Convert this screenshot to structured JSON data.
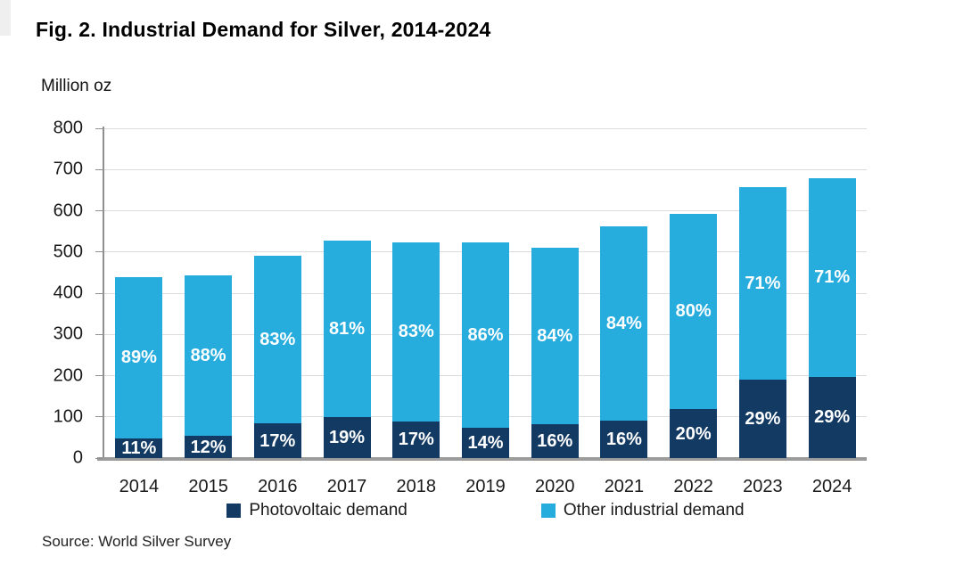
{
  "figure": {
    "title": "Fig. 2. Industrial Demand for Silver, 2014-2024",
    "unit_label": "Million oz",
    "source": "Source: World Silver Survey"
  },
  "legend": {
    "items": [
      {
        "name": "photovoltaic",
        "label": "Photovoltaic demand",
        "color": "#123a63"
      },
      {
        "name": "other-industrial",
        "label": "Other industrial demand",
        "color": "#27acde"
      }
    ]
  },
  "chart_data": {
    "type": "bar",
    "stacked": true,
    "title": "Fig. 2. Industrial Demand for Silver, 2014-2024",
    "ylabel": "Million oz",
    "xlabel": "",
    "categories": [
      "2014",
      "2015",
      "2016",
      "2017",
      "2018",
      "2019",
      "2020",
      "2021",
      "2022",
      "2023",
      "2024"
    ],
    "totals_million_oz": [
      440,
      443,
      490,
      527,
      524,
      523,
      511,
      562,
      593,
      657,
      680
    ],
    "series": [
      {
        "name": "Photovoltaic demand",
        "color": "#123a63",
        "pct_of_total": [
          11,
          12,
          17,
          19,
          17,
          14,
          16,
          16,
          20,
          29,
          29
        ],
        "labels": [
          "11%",
          "12%",
          "17%",
          "19%",
          "17%",
          "14%",
          "16%",
          "16%",
          "20%",
          "29%",
          "29%"
        ],
        "values_million_oz": [
          48,
          53,
          83,
          100,
          89,
          73,
          82,
          90,
          119,
          191,
          197
        ]
      },
      {
        "name": "Other industrial demand",
        "color": "#27acde",
        "pct_of_total": [
          89,
          88,
          83,
          81,
          83,
          86,
          84,
          84,
          80,
          71,
          71
        ],
        "labels": [
          "89%",
          "88%",
          "83%",
          "81%",
          "83%",
          "86%",
          "84%",
          "84%",
          "80%",
          "71%",
          "71%"
        ],
        "values_million_oz": [
          392,
          390,
          407,
          427,
          435,
          450,
          429,
          472,
          474,
          466,
          483
        ]
      }
    ],
    "ylim": [
      0,
      800
    ],
    "yticks": [
      0,
      100,
      200,
      300,
      400,
      500,
      600,
      700,
      800
    ],
    "grid": true,
    "gridline_color": "#dcdcdc",
    "axis_color": "#8f8f8f",
    "bar_label_color": "#ffffff",
    "legend_position": "bottom"
  }
}
